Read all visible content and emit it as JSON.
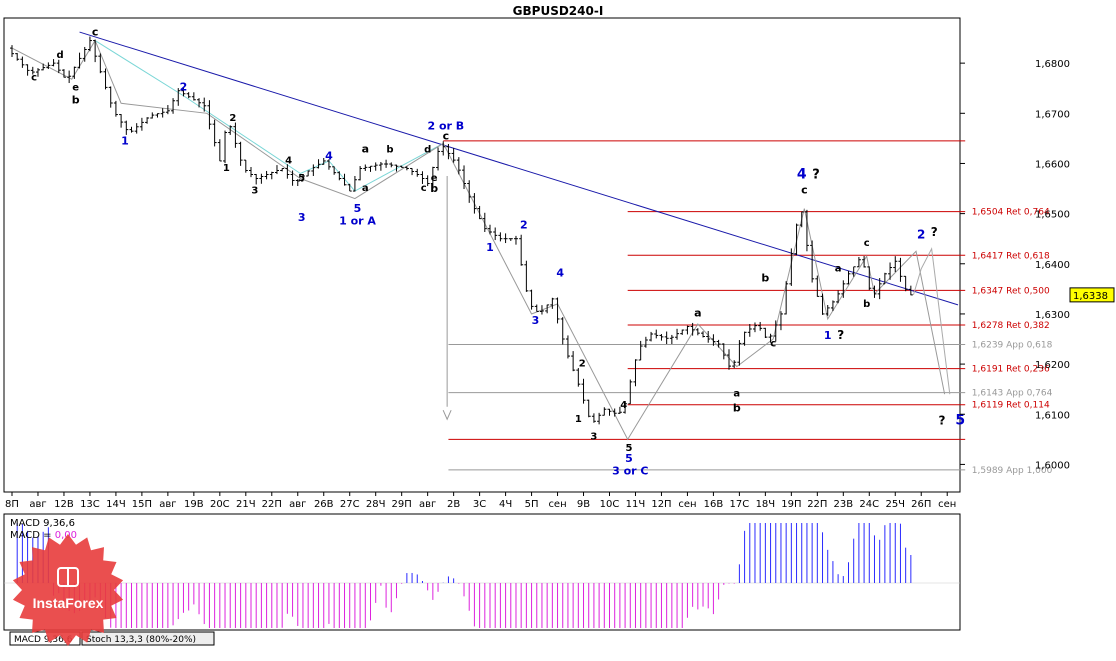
{
  "chart_data": {
    "type": "candlestick",
    "title": "GBPUSD240-I",
    "price_axis": {
      "range": [
        1.5945,
        1.689
      ],
      "ticks": [
        "1,6800",
        "1,6700",
        "1,6600",
        "1,6500",
        "1,6400",
        "1,6300",
        "1,6200",
        "1,6100",
        "1,6000"
      ],
      "tick_values": [
        1.68,
        1.67,
        1.66,
        1.65,
        1.64,
        1.63,
        1.62,
        1.61,
        1.6
      ],
      "current_price": "1,6338",
      "current_value": 1.6338
    },
    "time_axis": {
      "labels": [
        "8П",
        "авг",
        "12В",
        "13С",
        "14Ч",
        "15П",
        "авг",
        "19В",
        "20С",
        "21Ч",
        "22П",
        "авг",
        "26В",
        "27С",
        "28Ч",
        "29П",
        "авг",
        "2В",
        "3С",
        "4Ч",
        "5П",
        "сен",
        "9В",
        "10С",
        "11Ч",
        "12П",
        "сен",
        "16В",
        "17С",
        "18Ч",
        "19П",
        "22П",
        "23В",
        "24С",
        "25Ч",
        "26П",
        "сен"
      ]
    },
    "fib_levels": [
      {
        "value": 1.6504,
        "label": "1,6504 Ret 0,764",
        "color": "#cc0000"
      },
      {
        "value": 1.6417,
        "label": "1,6417 Ret 0,618",
        "color": "#cc0000"
      },
      {
        "value": 1.6347,
        "label": "1,6347 Ret 0,500",
        "color": "#cc0000"
      },
      {
        "value": 1.6278,
        "label": "1,6278 Ret 0,382",
        "color": "#cc0000"
      },
      {
        "value": 1.6239,
        "label": "1,6239 App 0,618",
        "color": "#999999"
      },
      {
        "value": 1.6191,
        "label": "1,6191 Ret 0,236",
        "color": "#cc0000"
      },
      {
        "value": 1.6143,
        "label": "1,6143 App 0,764",
        "color": "#999999"
      },
      {
        "value": 1.6119,
        "label": "1,6119 Ret 0,114",
        "color": "#cc0000"
      },
      {
        "value": 1.5989,
        "label": "1,5989 App 1,000",
        "color": "#999999"
      }
    ],
    "extra_levels": [
      {
        "value": 1.6645,
        "color": "#cc0000"
      },
      {
        "value": 1.605,
        "color": "#cc0000"
      }
    ],
    "wave_labels": [
      {
        "text": "c",
        "t": 3.2,
        "p": 1.6855,
        "color": "#000000",
        "size": 11
      },
      {
        "text": "d",
        "t": 1.85,
        "p": 1.681,
        "color": "#000000",
        "size": 10
      },
      {
        "text": "c",
        "t": 0.85,
        "p": 1.6765,
        "color": "#000000",
        "size": 10
      },
      {
        "text": "e",
        "t": 2.45,
        "p": 1.6745,
        "color": "#000000",
        "size": 10
      },
      {
        "text": "b",
        "t": 2.45,
        "p": 1.672,
        "color": "#000000",
        "size": 11
      },
      {
        "text": "2",
        "t": 6.6,
        "p": 1.6745,
        "color": "#0000cc",
        "size": 11
      },
      {
        "text": "1",
        "t": 4.35,
        "p": 1.6638,
        "color": "#0000cc",
        "size": 11
      },
      {
        "text": "2",
        "t": 8.5,
        "p": 1.6685,
        "color": "#000000",
        "size": 10
      },
      {
        "text": "1",
        "t": 8.25,
        "p": 1.6585,
        "color": "#000000",
        "size": 10
      },
      {
        "text": "3",
        "t": 9.35,
        "p": 1.654,
        "color": "#000000",
        "size": 10
      },
      {
        "text": "4",
        "t": 10.65,
        "p": 1.66,
        "color": "#000000",
        "size": 10
      },
      {
        "text": "4",
        "t": 12.2,
        "p": 1.6608,
        "color": "#0000cc",
        "size": 11
      },
      {
        "text": "5",
        "t": 11.15,
        "p": 1.6565,
        "color": "#000000",
        "size": 10
      },
      {
        "text": "3",
        "t": 11.15,
        "p": 1.6485,
        "color": "#0000cc",
        "size": 11
      },
      {
        "text": "a",
        "t": 13.6,
        "p": 1.6545,
        "color": "#000000",
        "size": 10
      },
      {
        "text": "a",
        "t": 13.6,
        "p": 1.6622,
        "color": "#000000",
        "size": 11
      },
      {
        "text": "b",
        "t": 14.55,
        "p": 1.6622,
        "color": "#000000",
        "size": 10
      },
      {
        "text": "d",
        "t": 16.0,
        "p": 1.6622,
        "color": "#000000",
        "size": 10
      },
      {
        "text": "c",
        "t": 15.85,
        "p": 1.6545,
        "color": "#000000",
        "size": 10
      },
      {
        "text": "e",
        "t": 16.25,
        "p": 1.6565,
        "color": "#000000",
        "size": 10
      },
      {
        "text": "b",
        "t": 16.25,
        "p": 1.6543,
        "color": "#000000",
        "size": 11
      },
      {
        "text": "5",
        "t": 13.3,
        "p": 1.6503,
        "color": "#0000cc",
        "size": 11
      },
      {
        "text": "1 or A",
        "t": 13.3,
        "p": 1.6478,
        "color": "#0000cc",
        "size": 11
      },
      {
        "text": "2 or B",
        "t": 16.7,
        "p": 1.6668,
        "color": "#0000cc",
        "size": 11
      },
      {
        "text": "c",
        "t": 16.7,
        "p": 1.6648,
        "color": "#000000",
        "size": 11
      },
      {
        "text": "2",
        "t": 19.7,
        "p": 1.647,
        "color": "#0000cc",
        "size": 11
      },
      {
        "text": "1",
        "t": 18.4,
        "p": 1.6425,
        "color": "#0000cc",
        "size": 11
      },
      {
        "text": "4",
        "t": 21.1,
        "p": 1.6375,
        "color": "#0000cc",
        "size": 11
      },
      {
        "text": "3",
        "t": 20.15,
        "p": 1.628,
        "color": "#0000cc",
        "size": 11
      },
      {
        "text": "2",
        "t": 21.95,
        "p": 1.6195,
        "color": "#000000",
        "size": 10
      },
      {
        "text": "1",
        "t": 21.8,
        "p": 1.6085,
        "color": "#000000",
        "size": 10
      },
      {
        "text": "3",
        "t": 22.4,
        "p": 1.605,
        "color": "#000000",
        "size": 10
      },
      {
        "text": "4",
        "t": 23.55,
        "p": 1.6112,
        "color": "#000000",
        "size": 10
      },
      {
        "text": "5",
        "t": 23.75,
        "p": 1.6027,
        "color": "#000000",
        "size": 10
      },
      {
        "text": "5",
        "t": 23.75,
        "p": 1.6005,
        "color": "#0000cc",
        "size": 11
      },
      {
        "text": "3 or C",
        "t": 23.8,
        "p": 1.598,
        "color": "#0000cc",
        "size": 11
      },
      {
        "text": "a",
        "t": 26.4,
        "p": 1.6295,
        "color": "#000000",
        "size": 11
      },
      {
        "text": "b",
        "t": 29.0,
        "p": 1.6365,
        "color": "#000000",
        "size": 11
      },
      {
        "text": "c",
        "t": 29.3,
        "p": 1.6235,
        "color": "#000000",
        "size": 10
      },
      {
        "text": "a",
        "t": 27.9,
        "p": 1.6135,
        "color": "#000000",
        "size": 10
      },
      {
        "text": "b",
        "t": 27.9,
        "p": 1.6105,
        "color": "#000000",
        "size": 11
      },
      {
        "text": "4",
        "t": 30.4,
        "p": 1.657,
        "color": "#0000cc",
        "size": 14
      },
      {
        "text": "?",
        "t": 30.95,
        "p": 1.657,
        "color": "#000000",
        "size": 13
      },
      {
        "text": "c",
        "t": 30.5,
        "p": 1.654,
        "color": "#000000",
        "size": 11
      },
      {
        "text": "b",
        "t": 32.9,
        "p": 1.6314,
        "color": "#000000",
        "size": 10
      },
      {
        "text": "a",
        "t": 31.8,
        "p": 1.6385,
        "color": "#000000",
        "size": 10
      },
      {
        "text": "c",
        "t": 32.9,
        "p": 1.6435,
        "color": "#000000",
        "size": 10
      },
      {
        "text": "1",
        "t": 31.4,
        "p": 1.625,
        "color": "#0000cc",
        "size": 11
      },
      {
        "text": "?",
        "t": 31.9,
        "p": 1.625,
        "color": "#000000",
        "size": 12
      },
      {
        "text": "2",
        "t": 35.0,
        "p": 1.645,
        "color": "#0000cc",
        "size": 12
      },
      {
        "text": "?",
        "t": 35.5,
        "p": 1.6455,
        "color": "#000000",
        "size": 12
      },
      {
        "text": "?",
        "t": 35.8,
        "p": 1.608,
        "color": "#000000",
        "size": 12
      },
      {
        "text": "5",
        "t": 36.5,
        "p": 1.608,
        "color": "#0000cc",
        "size": 14
      }
    ],
    "indicators": {
      "macd_label": "MACD 9,36,6",
      "macd_value_label": "MACD =",
      "macd_value": "0,00",
      "tabs": [
        "MACD 9,36,6",
        "Stoch 13,3,3 (80%-20%)"
      ]
    },
    "logo": {
      "text": "InstaForex",
      "color": "#e83c3c"
    },
    "colors": {
      "trendline": "#1a1aaa",
      "wave_guides": "#999999",
      "macd_positive": "#2a2aff",
      "macd_negative": "#dd22dd",
      "current_price_bg": "#ffff00"
    }
  }
}
